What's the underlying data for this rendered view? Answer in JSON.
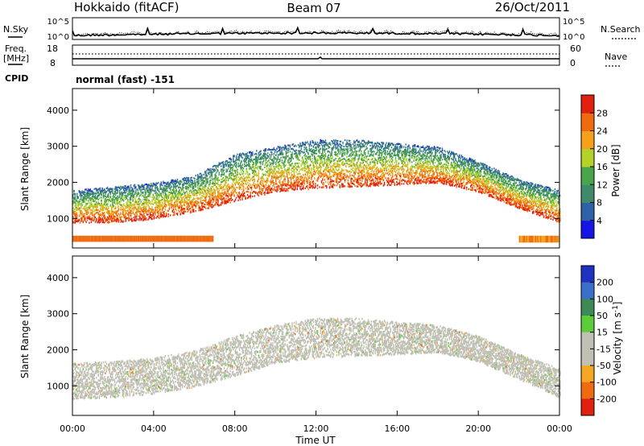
{
  "header": {
    "station": "Hokkaido (fitACF)",
    "beam": "Beam 07",
    "date": "26/Oct/2011"
  },
  "noise_panel": {
    "left_label": "N.Sky",
    "right_label": "N.Search",
    "left_ticks": [
      "10^5",
      "10^0"
    ],
    "right_ticks": [
      "10^5",
      "10^0"
    ]
  },
  "freq_panel": {
    "label_line1": "Freq.",
    "label_line2": "[MHz]",
    "left_ticks": [
      "18",
      "8"
    ],
    "right_label": "Nave",
    "right_ticks": [
      "60",
      "0"
    ],
    "cpid_label": "CPID",
    "cpid_text": "normal (fast) -151"
  },
  "chart_data": [
    {
      "type": "heatmap",
      "panel": "power",
      "xlabel": "",
      "ylabel": "Slant Range [km]",
      "x_range_hours": [
        0,
        24
      ],
      "ylim": [
        180,
        4600
      ],
      "yticks": [
        "1000",
        "2000",
        "3000",
        "4000"
      ],
      "colorbar": {
        "label": "Power [dB]",
        "ticks": [
          "4",
          "8",
          "12",
          "16",
          "20",
          "24",
          "28"
        ],
        "range": [
          0,
          32
        ],
        "colors": [
          "#1515e6",
          "#2d62a8",
          "#3e8a6a",
          "#4aa54a",
          "#b4d22a",
          "#f5a21a",
          "#f06a10",
          "#e22010"
        ]
      },
      "echo_bands": [
        {
          "name": "near-range",
          "from_km": 350,
          "to_km": 520,
          "t_start": 0.0,
          "t_end": 6.9,
          "power_db": 26
        },
        {
          "name": "near-range",
          "from_km": 330,
          "to_km": 520,
          "t_start": 22.0,
          "t_end": 24.0,
          "power_db": 24
        },
        {
          "name": "f-region",
          "lower_km": [
            900,
            900,
            1000,
            1200,
            1500,
            1750,
            1850,
            1900,
            1950,
            2000,
            1750,
            1300,
            900
          ],
          "upper_km": [
            1800,
            1900,
            2000,
            2200,
            2800,
            3000,
            3200,
            3200,
            3100,
            3000,
            2600,
            2100,
            1800
          ],
          "t": [
            0,
            2,
            4,
            6,
            8,
            10,
            12,
            14,
            16,
            18,
            20,
            22,
            24
          ]
        }
      ]
    },
    {
      "type": "heatmap",
      "panel": "velocity",
      "xlabel": "Time UT",
      "ylabel": "Slant Range [km]",
      "x_range_hours": [
        0,
        24
      ],
      "xticks": [
        "00:00",
        "04:00",
        "08:00",
        "12:00",
        "16:00",
        "20:00",
        "00:00"
      ],
      "ylim": [
        180,
        4600
      ],
      "yticks": [
        "1000",
        "2000",
        "3000",
        "4000"
      ],
      "colorbar": {
        "label": "Velocity [m s^-1]",
        "ticks": [
          "200",
          "100",
          "50",
          "15",
          "-15",
          "-50",
          "-100",
          "-200"
        ],
        "range": [
          -250,
          250
        ],
        "colors": [
          "#2030c0",
          "#3a70c8",
          "#3e8a56",
          "#5dcc3a",
          "#c0c0b4",
          "#c0c0b4",
          "#f5a623",
          "#f06a10",
          "#e22010"
        ]
      },
      "echo_bands": [
        {
          "name": "ground-scatter",
          "lower_km": [
            650,
            700,
            800,
            1000,
            1300,
            1650,
            1800,
            1850,
            1900,
            1950,
            1700,
            1200,
            700
          ],
          "upper_km": [
            1650,
            1700,
            1800,
            2000,
            2400,
            2700,
            2900,
            2900,
            2800,
            2700,
            2400,
            1900,
            1500
          ],
          "t": [
            0,
            2,
            4,
            6,
            8,
            10,
            12,
            14,
            16,
            18,
            20,
            22,
            24
          ],
          "velocity": 0
        }
      ]
    }
  ]
}
